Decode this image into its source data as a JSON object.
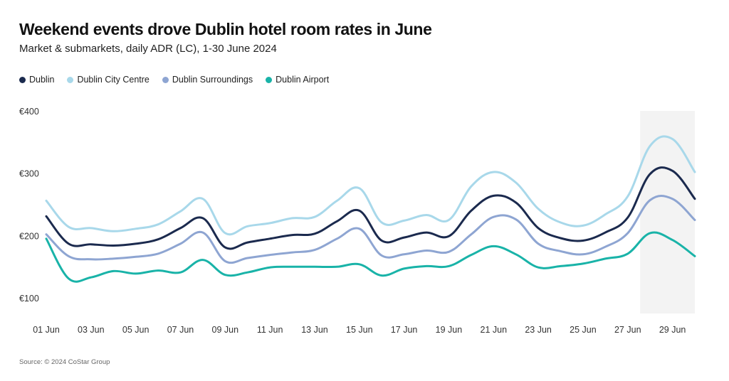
{
  "header": {
    "title": "Weekend events drove Dublin hotel room rates in June",
    "subtitle": "Market & submarkets, daily ADR (LC), 1-30 June 2024"
  },
  "footer": {
    "source": "Source: © 2024 CoStar Group"
  },
  "chart_data": {
    "type": "line",
    "title": "Weekend events drove Dublin hotel room rates in June",
    "subtitle": "Market & submarkets, daily ADR (LC), 1-30 June 2024",
    "xlabel": "",
    "ylabel": "",
    "x": [
      1,
      2,
      3,
      4,
      5,
      6,
      7,
      8,
      9,
      10,
      11,
      12,
      13,
      14,
      15,
      16,
      17,
      18,
      19,
      20,
      21,
      22,
      23,
      24,
      25,
      26,
      27,
      28,
      29,
      30
    ],
    "x_tick_labels": [
      "01 Jun",
      "03 Jun",
      "05 Jun",
      "07 Jun",
      "09 Jun",
      "11 Jun",
      "13 Jun",
      "15 Jun",
      "17 Jun",
      "19 Jun",
      "21 Jun",
      "23 Jun",
      "25 Jun",
      "27 Jun",
      "29 Jun"
    ],
    "x_tick_values": [
      1,
      3,
      5,
      7,
      9,
      11,
      13,
      15,
      17,
      19,
      21,
      23,
      25,
      27,
      29
    ],
    "ylim": [
      100,
      400
    ],
    "y_ticks": [
      100,
      200,
      300,
      400
    ],
    "y_tick_labels": [
      "€100",
      "€200",
      "€300",
      "€400"
    ],
    "grid": false,
    "legend_position": "top-left",
    "highlight_range": [
      28,
      30
    ],
    "highlight_color": "#f3f3f3",
    "series": [
      {
        "name": "Dublin",
        "color": "#1b2a4e",
        "values": [
          232,
          188,
          187,
          185,
          188,
          195,
          213,
          229,
          182,
          190,
          196,
          202,
          204,
          224,
          241,
          193,
          198,
          206,
          200,
          241,
          265,
          254,
          213,
          197,
          193,
          206,
          230,
          300,
          305,
          260
        ]
      },
      {
        "name": "Dublin City Centre",
        "color": "#a8d8ea",
        "values": [
          257,
          215,
          213,
          208,
          212,
          219,
          240,
          260,
          205,
          216,
          221,
          229,
          231,
          257,
          277,
          222,
          225,
          234,
          226,
          280,
          303,
          286,
          244,
          222,
          217,
          235,
          264,
          345,
          356,
          303
        ]
      },
      {
        "name": "Dublin Surroundings",
        "color": "#8ea5d2",
        "values": [
          203,
          168,
          163,
          164,
          167,
          172,
          188,
          206,
          160,
          165,
          170,
          174,
          178,
          196,
          212,
          169,
          171,
          177,
          175,
          203,
          231,
          227,
          188,
          176,
          171,
          183,
          205,
          258,
          260,
          226
        ]
      },
      {
        "name": "Dublin Airport",
        "color": "#19b3a8",
        "values": [
          196,
          132,
          134,
          144,
          140,
          145,
          142,
          162,
          138,
          142,
          150,
          151,
          151,
          151,
          155,
          137,
          148,
          152,
          152,
          170,
          184,
          171,
          150,
          152,
          156,
          164,
          172,
          205,
          194,
          168
        ]
      }
    ]
  }
}
